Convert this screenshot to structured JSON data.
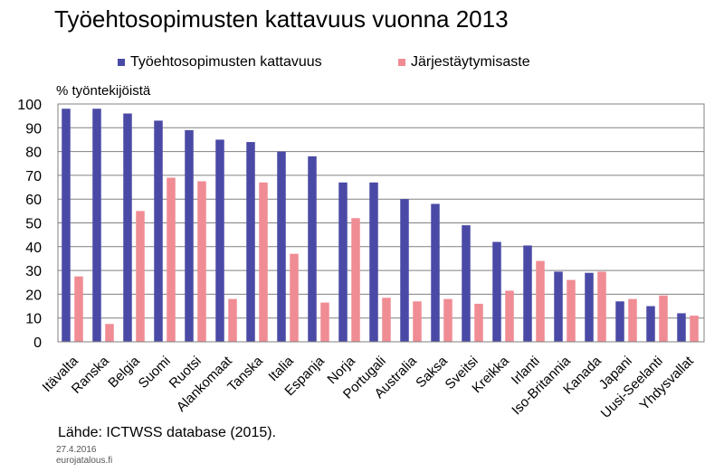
{
  "title": "Työehtosopimusten kattavuus vuonna 2013",
  "unit_label": "% työntekijöistä",
  "source": "Lähde: ICTWSS database (2015).",
  "date": "27.4.2016",
  "site": "eurojatalous.fi",
  "colors": {
    "series1": "#4a4aa6",
    "series2": "#f08c94",
    "grid": "#808080"
  },
  "chart_data": {
    "type": "bar",
    "title": "Työehtosopimusten kattavuus vuonna 2013",
    "ylabel": "% työntekijöistä",
    "xlabel": "",
    "ylim": [
      0,
      100
    ],
    "yticks": [
      0,
      10,
      20,
      30,
      40,
      50,
      60,
      70,
      80,
      90,
      100
    ],
    "grid": true,
    "legend": "top",
    "categories": [
      "Itävalta",
      "Ranska",
      "Belgia",
      "Suomi",
      "Ruotsi",
      "Alankomaat",
      "Tanska",
      "Italia",
      "Espanja",
      "Norja",
      "Portugali",
      "Australia",
      "Saksa",
      "Sveitsi",
      "Kreikka",
      "Irlanti",
      "Iso-Britannia",
      "Kanada",
      "Japani",
      "Uusi-Seelanti",
      "Yhdysvallat"
    ],
    "series": [
      {
        "name": "Työehtosopimusten kattavuus",
        "values": [
          98,
          98,
          96,
          93,
          89,
          85,
          84,
          80,
          78,
          67,
          67,
          60,
          58,
          49,
          42,
          40.5,
          29.5,
          29,
          17,
          15,
          12
        ]
      },
      {
        "name": "Järjestäytymisaste",
        "values": [
          27.5,
          7.5,
          55,
          69,
          67.5,
          18,
          67,
          37,
          16.5,
          52,
          18.5,
          17,
          18,
          16,
          21.5,
          34,
          26,
          29.5,
          18,
          19.5,
          11
        ]
      }
    ]
  }
}
